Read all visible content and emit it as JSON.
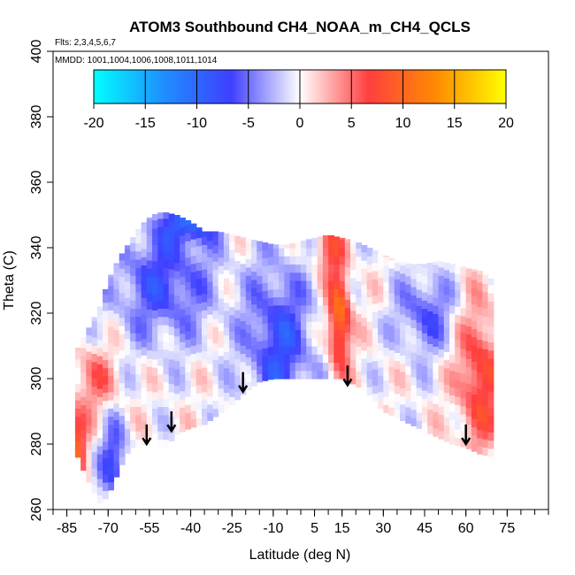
{
  "chart_data": {
    "type": "heatmap",
    "title": "ATOM3 Southbound CH4_NOAA_m_CH4_QCLS",
    "flights_note": "Flts: 2,3,4,5,6,7",
    "dates_note": "MMDD: 1001,1004,1006,1008,1011,1014",
    "xlabel": "Latitude (deg N)",
    "ylabel": "Theta (C)",
    "xlim": [
      -90,
      90
    ],
    "ylim": [
      260,
      400
    ],
    "x_ticks": [
      "-85",
      "-70",
      "-55",
      "-40",
      "-25",
      "-10",
      "5",
      "15",
      "30",
      "45",
      "60",
      "75"
    ],
    "x_tick_values": [
      -85,
      -70,
      -55,
      -40,
      -25,
      -10,
      5,
      15,
      30,
      45,
      60,
      75
    ],
    "y_ticks": [
      "260",
      "280",
      "300",
      "320",
      "340",
      "360",
      "380",
      "400"
    ],
    "y_tick_values": [
      260,
      280,
      300,
      320,
      340,
      360,
      380,
      400
    ],
    "colorbar": {
      "min": -20,
      "max": 20,
      "ticks": [
        "-20",
        "-15",
        "-10",
        "-5",
        "0",
        "5",
        "10",
        "15",
        "20"
      ],
      "tick_values": [
        -20,
        -15,
        -10,
        -5,
        0,
        5,
        10,
        15,
        20
      ],
      "colors": [
        "#00ffff",
        "#1e90ff",
        "#3f3fff",
        "#ffffff",
        "#ff3f3f",
        "#ff8c00",
        "#ffff00"
      ]
    },
    "arrows_latitude": [
      -56,
      -47,
      -21,
      17,
      60
    ],
    "arrows_theta": [
      286,
      290,
      302,
      304,
      286
    ],
    "data_boundary": {
      "latitude": [
        -82,
        -78,
        -73,
        -70,
        -66,
        -62,
        -58,
        -54,
        -50,
        -45,
        -40,
        -35,
        -30,
        -25,
        -20,
        -15,
        -10,
        -5,
        0,
        5,
        10,
        15,
        20,
        25,
        30,
        35,
        40,
        45,
        50,
        55,
        60,
        65,
        70
      ],
      "theta_bottom": [
        278,
        270,
        262,
        264,
        272,
        279,
        279,
        282,
        278,
        283,
        285,
        286,
        289,
        292,
        296,
        299,
        300,
        300,
        300,
        300,
        300,
        300,
        298,
        295,
        290,
        288,
        286,
        284,
        282,
        280,
        279,
        277,
        276
      ],
      "theta_top": [
        308,
        314,
        322,
        330,
        337,
        342,
        347,
        350,
        351,
        350,
        348,
        345,
        345,
        344,
        343,
        342,
        341,
        341,
        342,
        343,
        344,
        343,
        342,
        340,
        338,
        336,
        335,
        335,
        336,
        335,
        334,
        333,
        330
      ]
    },
    "grid": false,
    "legend": "top colorbar"
  }
}
